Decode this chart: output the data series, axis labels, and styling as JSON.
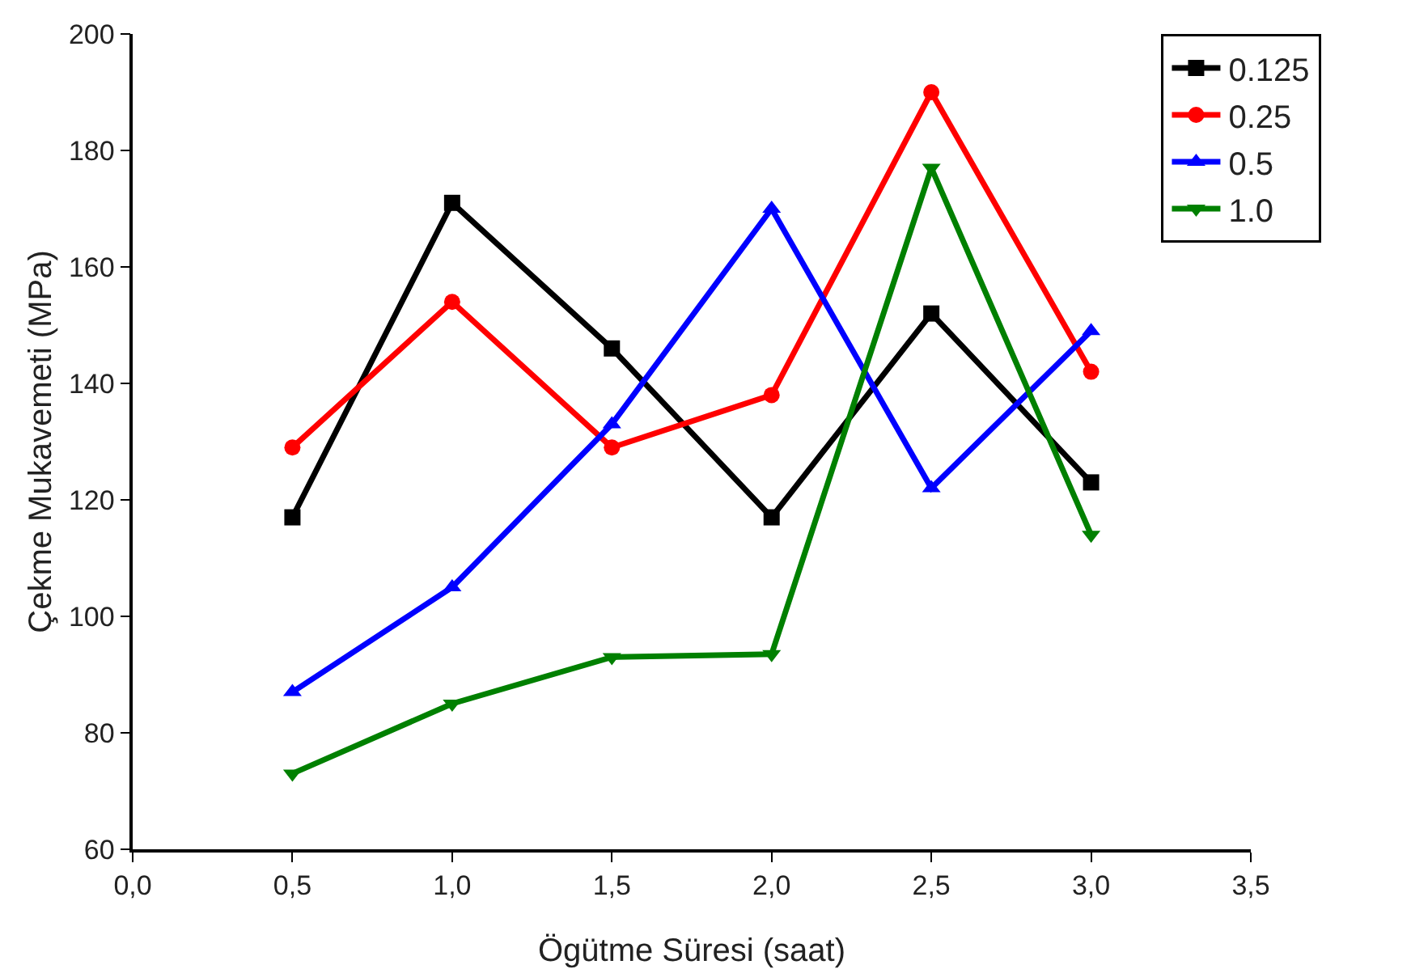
{
  "chart_data": {
    "type": "line",
    "xlabel": "Ögütme Süresi (saat)",
    "ylabel": "Çekme Mukavemeti (MPa)",
    "x": [
      0.5,
      1.0,
      1.5,
      2.0,
      2.5,
      3.0
    ],
    "series": [
      {
        "name": "0.125",
        "color": "#000000",
        "marker": "square",
        "values": [
          117,
          171,
          146,
          117,
          152,
          123
        ]
      },
      {
        "name": "0.25",
        "color": "#ff0000",
        "marker": "circle",
        "values": [
          129,
          154,
          129,
          138,
          190,
          142
        ]
      },
      {
        "name": "0.5",
        "color": "#0000ff",
        "marker": "triangle",
        "values": [
          87,
          105,
          133,
          170,
          122,
          149
        ]
      },
      {
        "name": "1.0",
        "color": "#008000",
        "marker": "triangle-down",
        "values": [
          73,
          85,
          93,
          93.5,
          177,
          114
        ]
      }
    ],
    "xlim": [
      0,
      3.5
    ],
    "xticks": [
      {
        "value": 0,
        "label": "0,0"
      },
      {
        "value": 0.5,
        "label": "0,5"
      },
      {
        "value": 1,
        "label": "1,0"
      },
      {
        "value": 1.5,
        "label": "1,5"
      },
      {
        "value": 2,
        "label": "2,0"
      },
      {
        "value": 2.5,
        "label": "2,5"
      },
      {
        "value": 3,
        "label": "3,0"
      },
      {
        "value": 3.5,
        "label": "3,5"
      }
    ],
    "ylim": [
      60,
      200
    ],
    "yticks": [
      60,
      80,
      100,
      120,
      140,
      160,
      180,
      200
    ],
    "grid": false,
    "legend": "top right",
    "line_style": "solid"
  }
}
